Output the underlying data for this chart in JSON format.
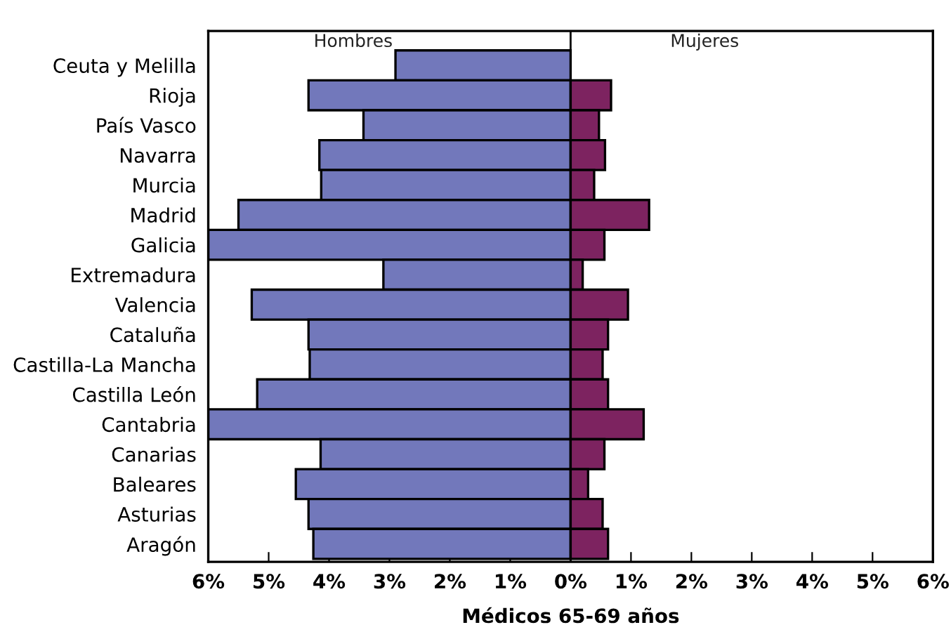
{
  "chart_data": {
    "type": "bar",
    "orientation": "horizontal",
    "xlabel": "Médicos 65-69 años",
    "categories": [
      "Ceuta y Melilla",
      "Rioja",
      "País Vasco",
      "Navarra",
      "Murcia",
      "Madrid",
      "Galicia",
      "Extremadura",
      "Valencia",
      "Cataluña",
      "Castilla-La Mancha",
      "Castilla León",
      "Cantabria",
      "Canarias",
      "Baleares",
      "Asturias",
      "Aragón"
    ],
    "series": [
      {
        "name": "Hombres",
        "color": "#7278bb",
        "values": [
          -2.9,
          -4.34,
          -3.43,
          -4.16,
          -4.13,
          -5.5,
          -6.0,
          -3.1,
          -5.28,
          -4.34,
          -4.32,
          -5.19,
          -6.0,
          -4.14,
          -4.55,
          -4.34,
          -4.26
        ]
      },
      {
        "name": "Mujeres",
        "color": "#7d2360",
        "values": [
          null,
          0.67,
          0.47,
          0.57,
          0.39,
          1.3,
          0.56,
          0.2,
          0.95,
          0.62,
          0.53,
          0.62,
          1.21,
          0.56,
          0.29,
          0.53,
          0.62
        ]
      }
    ],
    "xlim": [
      -6,
      6
    ],
    "xticks": [
      {
        "value": -6,
        "label": "6%"
      },
      {
        "value": -5,
        "label": "5%"
      },
      {
        "value": -4,
        "label": "4%"
      },
      {
        "value": -3,
        "label": "3%"
      },
      {
        "value": -2,
        "label": "2%"
      },
      {
        "value": -1,
        "label": "1%"
      },
      {
        "value": 0,
        "label": "0%"
      },
      {
        "value": 1,
        "label": "1%"
      },
      {
        "value": 2,
        "label": "2%"
      },
      {
        "value": 3,
        "label": "3%"
      },
      {
        "value": 4,
        "label": "4%"
      },
      {
        "value": 5,
        "label": "5%"
      },
      {
        "value": 6,
        "label": "6%"
      }
    ],
    "ref_lines": [
      {
        "axis": "x",
        "value": 0,
        "color": "#000000"
      }
    ],
    "stacked": true,
    "grid": false,
    "legend": false
  }
}
